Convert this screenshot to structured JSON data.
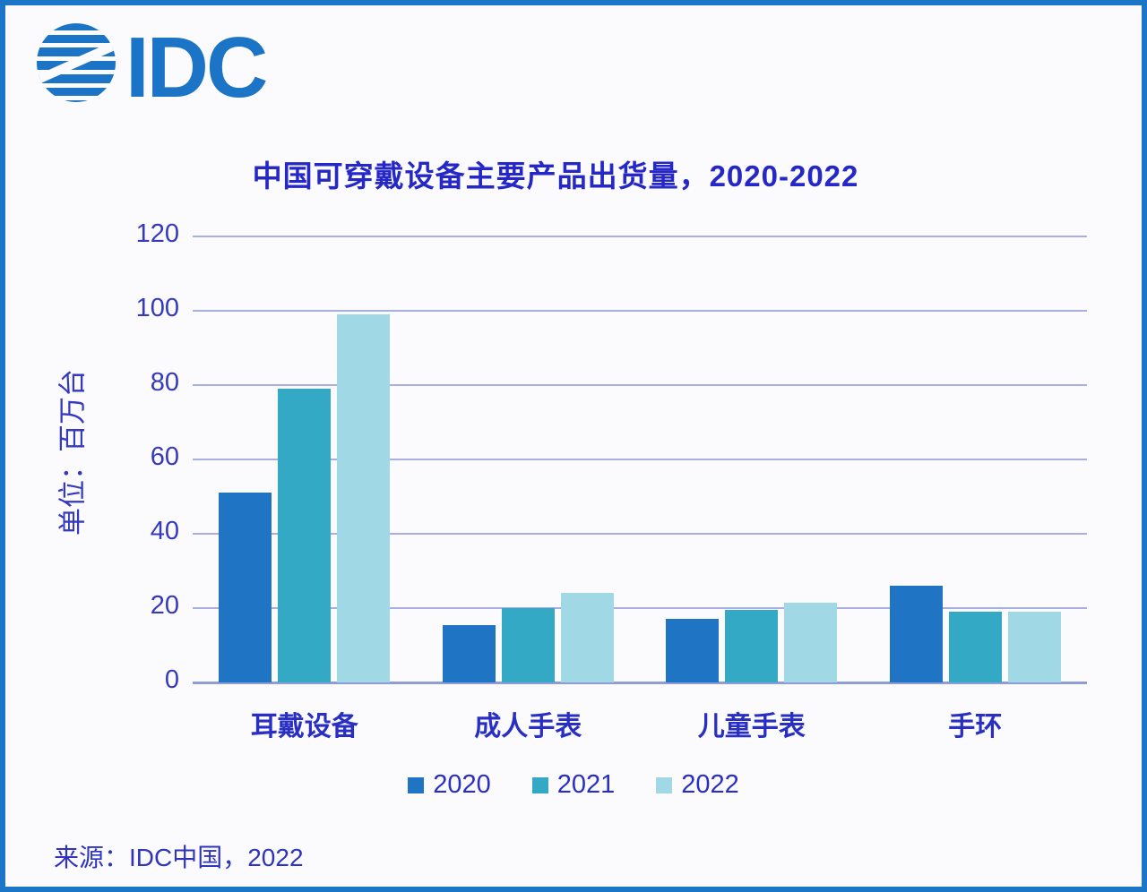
{
  "page": {
    "background_color": "#FBFBFD",
    "border_color": "#1C76C8"
  },
  "header": {
    "logo": {
      "text": "IDC",
      "color": "#1C74C6",
      "icon": "globe-stripes-icon"
    }
  },
  "chart_title": "中国可穿戴设备主要产品出货量，2020-2022",
  "chart_data": {
    "type": "bar",
    "title": "中国可穿戴设备主要产品出货量，2020-2022",
    "categories": [
      "耳戴设备",
      "成人手表",
      "儿童手表",
      "手环"
    ],
    "series": [
      {
        "name": "2020",
        "color": "#1F74C4",
        "values": [
          51,
          15.5,
          17,
          26
        ]
      },
      {
        "name": "2021",
        "color": "#34A9C6",
        "values": [
          79,
          20,
          19.5,
          19
        ]
      },
      {
        "name": "2022",
        "color": "#A0D8E6",
        "values": [
          99,
          24,
          21.5,
          19
        ]
      }
    ],
    "xlabel": "",
    "ylabel": "单位：百万台",
    "ylim": [
      0,
      120
    ],
    "yticks": [
      0,
      20,
      40,
      60,
      80,
      100,
      120
    ],
    "grid": true,
    "legend_position": "bottom"
  },
  "footer": {
    "source": "来源：IDC中国，2022"
  },
  "colors": {
    "grid": "#A6AFDF",
    "baseline": "#8E9DD6",
    "axis_text": "#3539BE",
    "title_text": "#2527C6"
  }
}
